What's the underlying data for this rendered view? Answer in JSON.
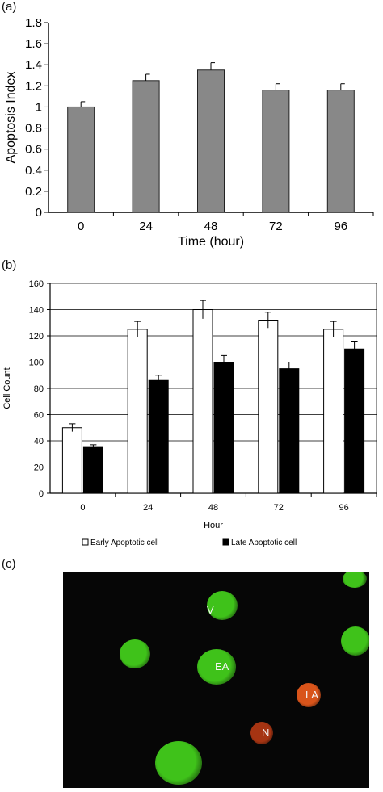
{
  "panels": {
    "a": "(a)",
    "b": "(b)",
    "c": "(c)"
  },
  "chart_data": [
    {
      "type": "bar",
      "categories": [
        "0",
        "24",
        "48",
        "72",
        "96"
      ],
      "values": [
        1.0,
        1.25,
        1.35,
        1.16,
        1.16
      ],
      "errors": [
        0.05,
        0.06,
        0.07,
        0.06,
        0.06
      ],
      "title": "",
      "xlabel": "Time (hour)",
      "ylabel": "Apoptosis Index",
      "ylim": [
        0,
        1.8
      ],
      "yticks": [
        "0",
        "0.2",
        "0.4",
        "0.6",
        "0.8",
        "1",
        "1.2",
        "1.4",
        "1.6",
        "1.8"
      ],
      "grid": false,
      "colors": {
        "bar": "#888888"
      }
    },
    {
      "type": "bar",
      "categories": [
        "0",
        "24",
        "48",
        "72",
        "96"
      ],
      "series": [
        {
          "name": "Early Apoptotic cell",
          "values": [
            50,
            125,
            140,
            132,
            125
          ],
          "errors": [
            3,
            6,
            7,
            6,
            6
          ],
          "color": "#ffffff"
        },
        {
          "name": "Late Apoptotic cell",
          "values": [
            35,
            86,
            100,
            95,
            110
          ],
          "errors": [
            2,
            4,
            5,
            5,
            6
          ],
          "color": "#000000"
        }
      ],
      "title": "",
      "xlabel": "Hour",
      "ylabel": "Cell Count",
      "ylim": [
        0,
        160
      ],
      "yticks": [
        "0",
        "20",
        "40",
        "60",
        "80",
        "100",
        "120",
        "140",
        "160"
      ],
      "grid": true,
      "legend": "bottom"
    }
  ],
  "micrograph": {
    "labels": {
      "v": "V",
      "ea": "EA",
      "la": "LA",
      "n": "N"
    },
    "colors": {
      "viable": "#3fc21a",
      "late": "#d9541a",
      "necrotic": "#a63412",
      "background": "#060606"
    }
  }
}
